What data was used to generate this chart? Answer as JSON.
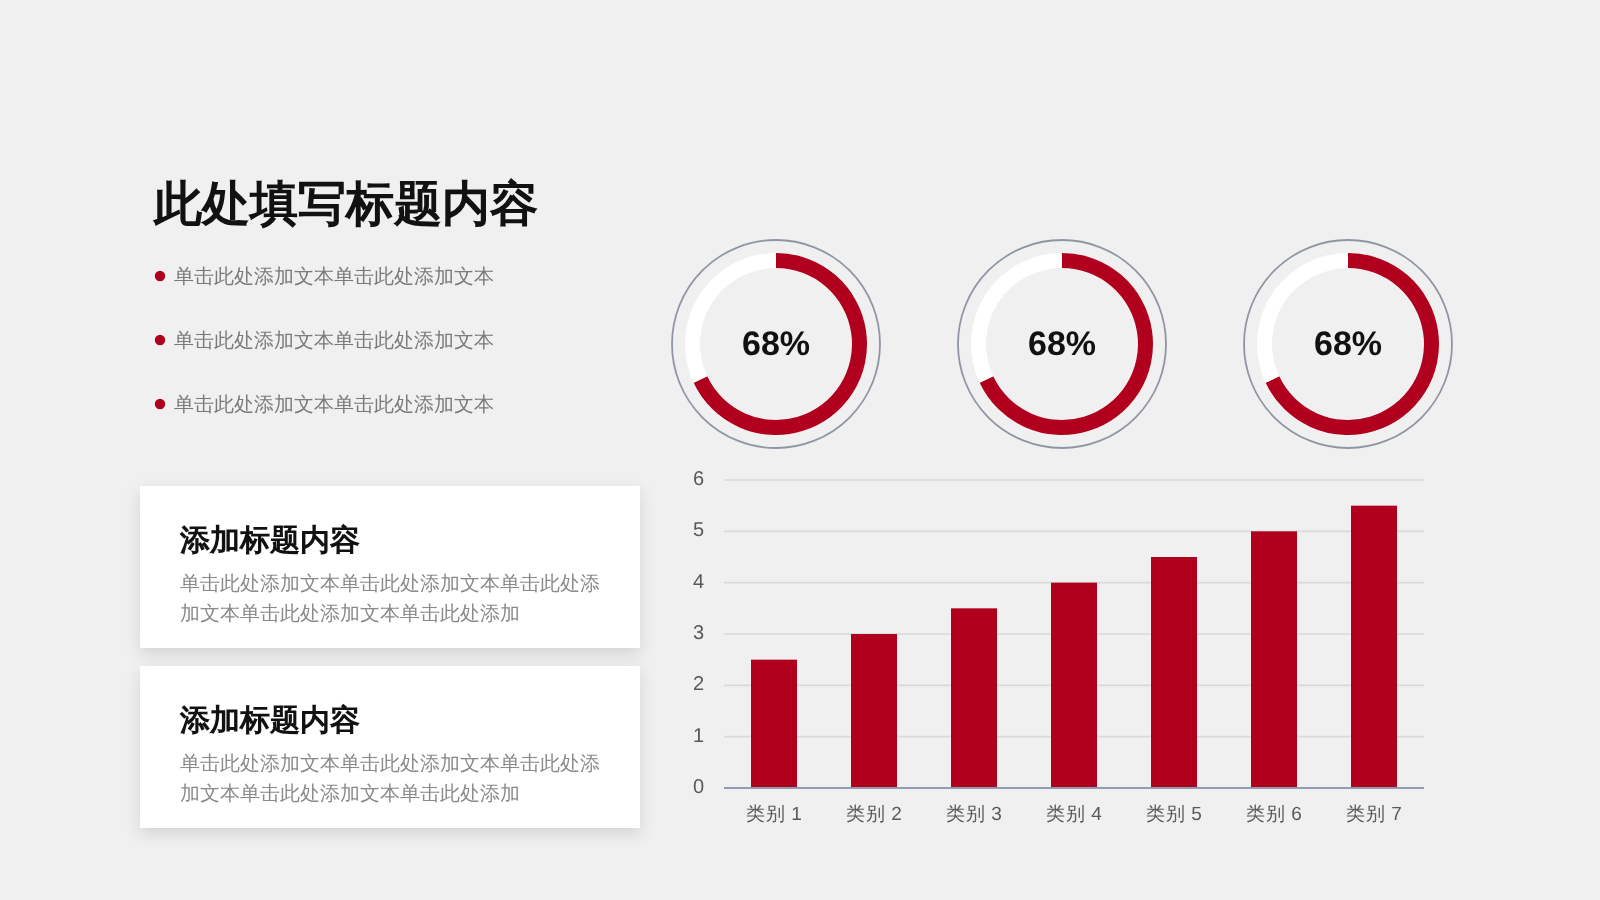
{
  "chart_data": [
    {
      "type": "other",
      "title": "此处填写标题内容",
      "annotations": [
        "单击此处添加文本单击此处添加文本",
        "单击此处添加文本单击此处添加文本",
        "单击此处添加文本单击此处添加文本"
      ]
    },
    {
      "type": "other",
      "title": "添加标题内容",
      "annotations": [
        "单击此处添加文本单击此处添加文本单击此处添加文本单击此处添加文本单击此处添加"
      ]
    },
    {
      "type": "other",
      "title": "添加标题内容",
      "annotations": [
        "单击此处添加文本单击此处添加文本单击此处添加文本单击此处添加文本单击此处添加"
      ]
    },
    {
      "type": "donut",
      "categories": [
        null,
        null
      ],
      "values": [
        68,
        32
      ],
      "colors": [
        "#b0001e",
        "#ffffff"
      ],
      "value_labels": [
        "68%",
        null
      ]
    },
    {
      "type": "donut",
      "categories": [
        null,
        null
      ],
      "values": [
        68,
        32
      ],
      "colors": [
        "#b0001e",
        "#ffffff"
      ],
      "value_labels": [
        "68%",
        null
      ]
    },
    {
      "type": "donut",
      "categories": [
        null,
        null
      ],
      "values": [
        68,
        32
      ],
      "colors": [
        "#b0001e",
        "#ffffff"
      ],
      "value_labels": [
        "68%",
        null
      ]
    },
    {
      "type": "bar",
      "categories": [
        "类别 1",
        "类别 2",
        "类别 3",
        "类别 4",
        "类别 5",
        "类别 6",
        "类别 7"
      ],
      "values": [
        2.5,
        3,
        3.5,
        4,
        4.5,
        5,
        5.5
      ],
      "color": "#b0001e",
      "ylim": [
        0,
        6
      ],
      "yticks": [
        0,
        1,
        2,
        3,
        4,
        5,
        6
      ],
      "grid": "y"
    }
  ]
}
